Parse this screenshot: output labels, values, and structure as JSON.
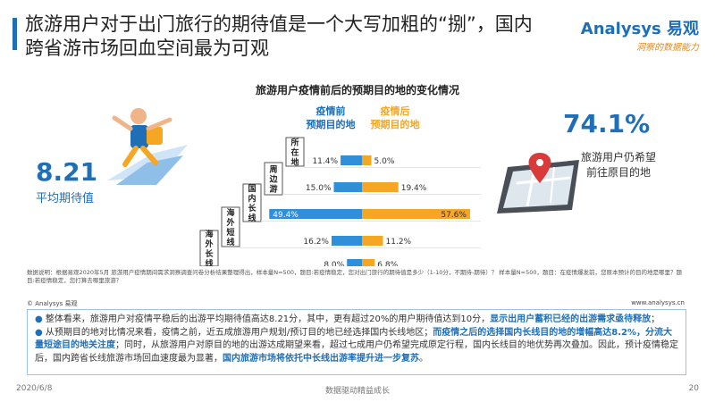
{
  "header": {
    "title_line1": "旅游用户对于出门旅行的期待值是一个大写加粗的“捌”，国内",
    "title_line2": "跨省游市场回血空间最为可观"
  },
  "logo": {
    "main": "Analysys 易观",
    "sub": "洞察的数据能力"
  },
  "left_stat": {
    "value": "8.21",
    "label": "平均期待值"
  },
  "right_stat": {
    "value": "74.1%",
    "label_line1": "旅游用户仍希望",
    "label_line2": "前往原目的地"
  },
  "chart_data": {
    "type": "bar",
    "title": "旅游用户疫情前后的预期目的地的变化情况",
    "categories": [
      "所在地",
      "周边游",
      "国内长线",
      "海外短线",
      "海外长线"
    ],
    "series": [
      {
        "name": "疫情前预期目的地",
        "values": [
          11.4,
          15.0,
          49.4,
          16.2,
          8.0
        ]
      },
      {
        "name": "疫情后预期目的地",
        "values": [
          5.0,
          19.4,
          57.6,
          11.2,
          6.8
        ]
      }
    ],
    "value_labels_before": [
      "11.4%",
      "15.0%",
      "49.4%",
      "16.2%",
      "8.0%"
    ],
    "value_labels_after": [
      "5.0%",
      "19.4%",
      "57.6%",
      "11.2%",
      "6.8%"
    ],
    "legend_before_line1": "疫情前",
    "legend_before_line2": "预期目的地",
    "legend_after_line1": "疫情后",
    "legend_after_line2": "预期目的地",
    "orientation": "horizontal-diverging",
    "colors": {
      "before": "#2f8fd8",
      "after": "#f5a623"
    }
  },
  "notes": "数据说明：根据易观2020年5月 旅游用户疫情期间需求洞察调查问卷分析结果整理得出，样本量N=500，题目:若疫情稳定，您对出门旅行的期待值是多少（1-10分，不期待-期待）？ 样本量N=500，题目：在疫情爆发前，您原本预计的目的地是哪里？题目:若疫情稳定，您打算去哪里旅游？",
  "copyright": "© Analysys 易观",
  "website": "www.analysys.cn",
  "summary": {
    "b1_pre": "整体看来，旅游用户对疫情平稳后的出游平均期待值高达8.21分，其中，更有超过20%的用户期待值达到10分，",
    "b1_hl": "显示出用户蓄积已经的出游需求亟待释放",
    "b1_post": "；",
    "b2_pre": "从预期目的地对比情况来看，疫情之前，近五成旅游用户规划/预订目的地已经选择国内长线地区；",
    "b2_hl": "而疫情之后的选择国内长线目的地的增幅高达8.2%，分流大量短途目的地关注度",
    "b2_post": "；同时，从旅游用户对原目的地的出游达成期望来看，超过七成用户仍希望完成原定行程，国内长线目的地优势再次叠加。因此，预计疫情稳定后，国内跨省长线旅游市场回血速度最为显著，",
    "b2_hl2": "国内旅游市场将依托中长线出游率提升进一步复苏",
    "b2_end": "。"
  },
  "footer": {
    "date": "2020/6/8",
    "slogan": "数据驱动精益成长",
    "page": "20"
  }
}
